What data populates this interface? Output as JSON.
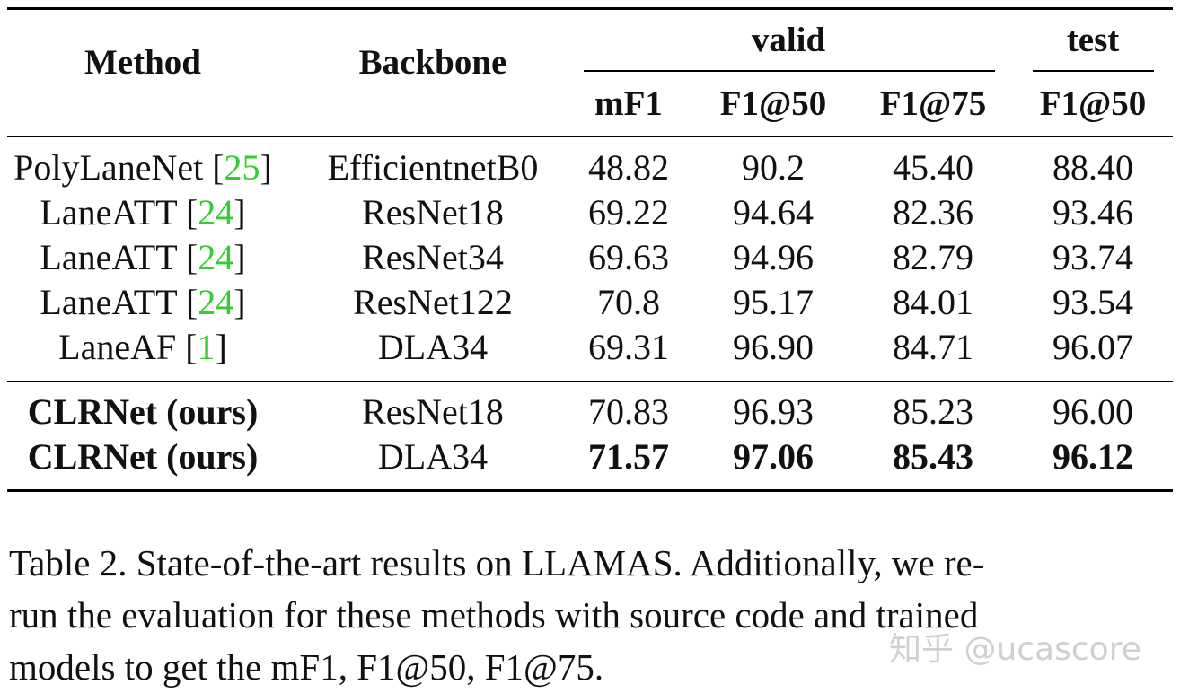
{
  "table": {
    "headers": {
      "method": "Method",
      "backbone": "Backbone",
      "valid": "valid",
      "test": "test",
      "sub": [
        "mF1",
        "F1@50",
        "F1@75",
        "F1@50"
      ]
    },
    "rows": [
      {
        "method": "PolyLaneNet",
        "cite": "25",
        "backbone": "EfficientnetB0",
        "mf1": "48.82",
        "f50": "90.2",
        "f75": "45.40",
        "test_f50": "88.40"
      },
      {
        "method": "LaneATT",
        "cite": "24",
        "backbone": "ResNet18",
        "mf1": "69.22",
        "f50": "94.64",
        "f75": "82.36",
        "test_f50": "93.46"
      },
      {
        "method": "LaneATT",
        "cite": "24",
        "backbone": "ResNet34",
        "mf1": "69.63",
        "f50": "94.96",
        "f75": "82.79",
        "test_f50": "93.74"
      },
      {
        "method": "LaneATT",
        "cite": "24",
        "backbone": "ResNet122",
        "mf1": "70.8",
        "f50": "95.17",
        "f75": "84.01",
        "test_f50": "93.54"
      },
      {
        "method": "LaneAF",
        "cite": "1",
        "backbone": "DLA34",
        "mf1": "69.31",
        "f50": "96.90",
        "f75": "84.71",
        "test_f50": "96.07"
      }
    ],
    "ours_rows": [
      {
        "method": "CLRNet (ours)",
        "backbone": "ResNet18",
        "mf1": "70.83",
        "f50": "96.93",
        "f75": "85.23",
        "test_f50": "96.00"
      },
      {
        "method": "CLRNet (ours)",
        "backbone": "DLA34",
        "mf1": "71.57",
        "f50": "97.06",
        "f75": "85.43",
        "test_f50": "96.12"
      }
    ]
  },
  "caption": {
    "lines": [
      "Table 2. State-of-the-art results on LLAMAS. Additionally, we re-",
      "run the evaluation for these methods with source code and trained",
      "models to get the mF1, F1@50, F1@75."
    ]
  },
  "watermark": "知乎 @ucascore",
  "colors": {
    "citation": "#33cc33",
    "text": "#111111"
  }
}
